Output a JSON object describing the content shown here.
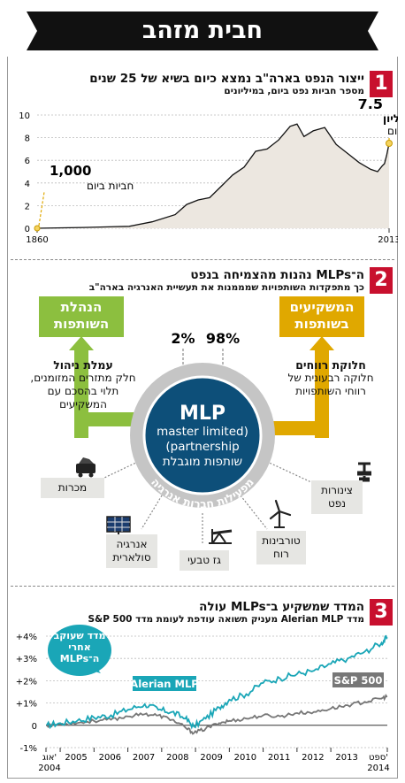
{
  "header": {
    "title": "חבית מזהב"
  },
  "section1": {
    "number": "1",
    "title": "ייצור הנפט בארה\"ב נמצא כיום בשיא של 25 שנים",
    "subtitle": "מספר חביות נפט ביום, במיליונים",
    "annotation_low": {
      "value": "1,000",
      "label": "חביות ביום"
    },
    "annotation_high": {
      "value": "7.5",
      "label1": "מיליון",
      "label2": "חביות ביום"
    }
  },
  "section2": {
    "number": "2",
    "title": "ה־MLPs נהנות מהצמיחה בנפט",
    "subtitle": "כך מתפקדות השותפויות שמממנות את תעשיית האנרגיה בארה\"ב",
    "left_box": "הנהלת השותפות",
    "right_box": "המשקיעים בשותפות",
    "left_pct": "2%",
    "right_pct": "98%",
    "left_title": "עמלת ניהול",
    "left_text": "חלק מתזרים המזומנים, תלוי בהסכם עם המשקיעים",
    "right_title": "חלוקת רווחים",
    "right_text": "חלוקה רבעונית של רווחי השותפויות",
    "center_title": "MLP",
    "center_line1": "master limited)",
    "center_line2": "(partnership",
    "center_line3": "שותפות מוגבלת",
    "ring_text": "מפעילות חברות אנרגיה",
    "tags": [
      "מכרות",
      "אנרגיה סולארית",
      "גז טבעי",
      "טורבינות רוח",
      "צינורות נפט"
    ],
    "icons": [
      "mine-cart-icon",
      "solar-panel-icon",
      "pump-jack-icon",
      "wind-turbine-icon",
      "pipeline-valve-icon"
    ]
  },
  "section3": {
    "number": "3",
    "title": "המדד שמשקיע ב־MLPs עולה",
    "subtitle": "מדד Alerian MLP מעניק תשואה עודפת לעומת מדד S&P 500",
    "callout": "מדד שעוקב אחרי ה־MLPs",
    "series_label_mlp": "Alerian MLP",
    "series_label_sp": "S&P 500"
  },
  "colors": {
    "accent": "#c8102e",
    "teal": "#1aa6b7",
    "green": "#8cbf3f",
    "gold": "#e0a800",
    "navy": "#0d4f79",
    "gray": "#777777"
  },
  "chart_data": [
    {
      "type": "line",
      "x_start": 1860,
      "x_end": 2013,
      "xlim": [
        1860,
        2013
      ],
      "ylim": [
        0,
        10
      ],
      "yticks": [
        0,
        2,
        4,
        6,
        8,
        10
      ],
      "xtick_labels": [
        "1860",
        "2013"
      ],
      "grid": true,
      "series": [
        {
          "x": [
            1860,
            1880,
            1900,
            1910,
            1920,
            1925,
            1930,
            1935,
            1940,
            1945,
            1950,
            1955,
            1960,
            1965,
            1970,
            1973,
            1976,
            1980,
            1985,
            1990,
            1995,
            2000,
            2005,
            2008,
            2010,
            2011,
            2012,
            2013
          ],
          "values": [
            0.001,
            0.07,
            0.17,
            0.57,
            1.2,
            2.1,
            2.5,
            2.7,
            3.7,
            4.7,
            5.4,
            6.8,
            7.0,
            7.8,
            9.0,
            9.2,
            8.1,
            8.6,
            8.9,
            7.4,
            6.6,
            5.8,
            5.2,
            5.0,
            5.5,
            5.7,
            6.5,
            7.5
          ]
        }
      ]
    },
    {
      "type": "line",
      "xlim": [
        2004.58,
        2014.67
      ],
      "ylim": [
        -1,
        4
      ],
      "yticks": [
        "+4%",
        "+3%",
        "+2%",
        "+1%",
        "0",
        "-1%"
      ],
      "xtick_labels": [
        "אוג' 2004",
        "2005",
        "2006",
        "2007",
        "2008",
        "2009",
        "2010",
        "2011",
        "2012",
        "2013",
        "ספט' 2014"
      ],
      "grid": true,
      "series": [
        {
          "name": "Alerian MLP",
          "x": [
            2004.6,
            2005.0,
            2005.5,
            2006.0,
            2006.5,
            2007.0,
            2007.5,
            2007.9,
            2008.3,
            2008.7,
            2008.95,
            2009.3,
            2009.7,
            2010.0,
            2010.5,
            2011.0,
            2011.5,
            2012.0,
            2012.5,
            2013.0,
            2013.5,
            2014.0,
            2014.5,
            2014.67
          ],
          "values": [
            0.0,
            0.1,
            0.2,
            0.35,
            0.45,
            0.7,
            0.95,
            0.7,
            0.6,
            0.3,
            -0.05,
            0.3,
            0.8,
            1.15,
            1.4,
            1.9,
            2.1,
            2.3,
            2.45,
            2.75,
            3.0,
            3.3,
            3.7,
            3.95
          ]
        },
        {
          "name": "S&P 500",
          "x": [
            2004.6,
            2005.0,
            2005.5,
            2006.0,
            2006.5,
            2007.0,
            2007.5,
            2007.9,
            2008.3,
            2008.7,
            2008.95,
            2009.3,
            2009.7,
            2010.0,
            2010.5,
            2011.0,
            2011.5,
            2012.0,
            2012.5,
            2013.0,
            2013.5,
            2014.0,
            2014.5,
            2014.67
          ],
          "values": [
            0.0,
            0.05,
            0.1,
            0.2,
            0.25,
            0.4,
            0.5,
            0.45,
            0.25,
            -0.1,
            -0.35,
            -0.15,
            0.1,
            0.2,
            0.3,
            0.45,
            0.4,
            0.55,
            0.6,
            0.75,
            0.9,
            1.05,
            1.2,
            1.3
          ]
        }
      ]
    }
  ]
}
